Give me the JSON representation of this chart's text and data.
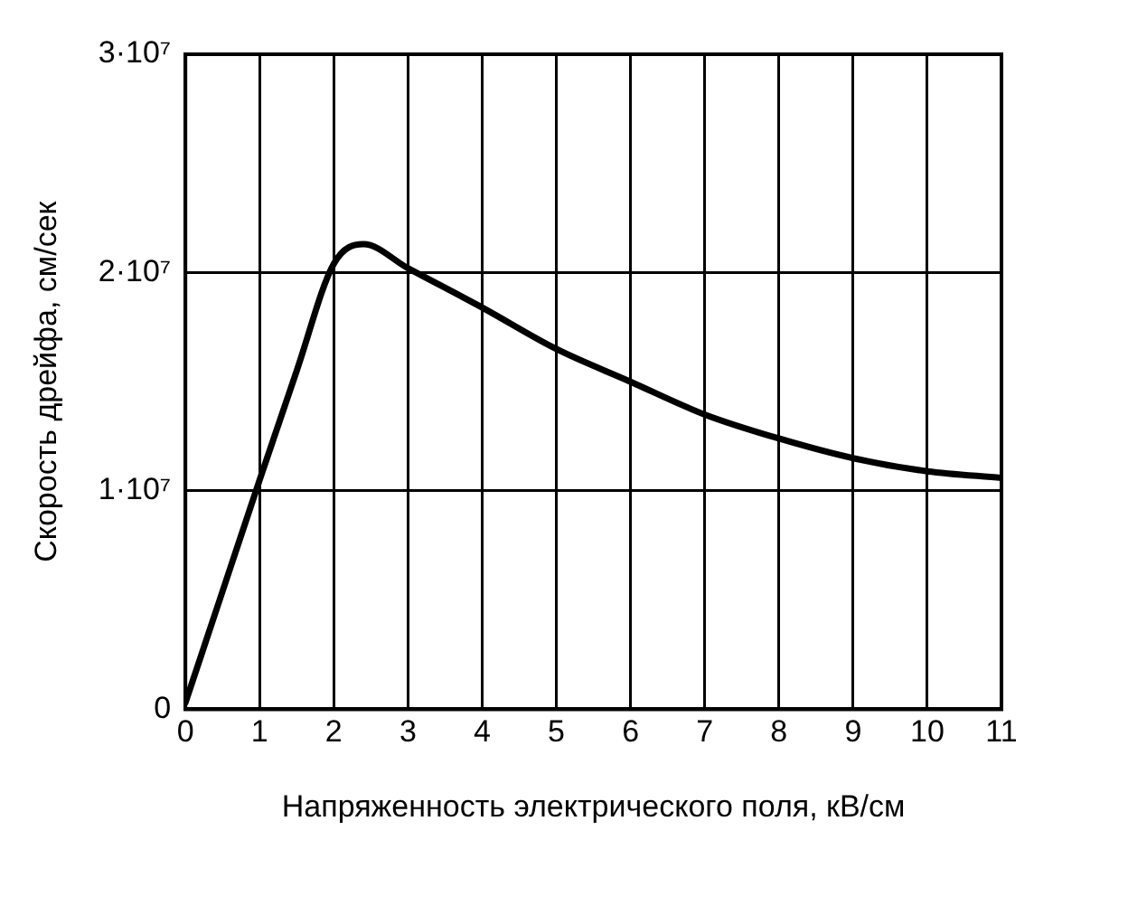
{
  "chart_data": {
    "type": "line",
    "xlabel": "Напряженность электрического поля, кВ/см",
    "ylabel": "Скорость дрейфа, см/сек",
    "x": [
      0,
      0.5,
      1,
      1.5,
      2,
      2.4,
      3,
      4,
      5,
      6,
      7,
      8,
      9,
      10,
      11
    ],
    "series": [
      {
        "color": "#000000",
        "values": [
          300000,
          5400000,
          10500000,
          15500000,
          20400000,
          21300000,
          20200000,
          18400000,
          16500000,
          15000000,
          13500000,
          12400000,
          11500000,
          10900000,
          10600000
        ]
      }
    ],
    "xlim": [
      0,
      11
    ],
    "xticks": [
      0,
      1,
      2,
      3,
      4,
      5,
      6,
      7,
      8,
      9,
      10,
      11
    ],
    "ylim": [
      0,
      30000000
    ],
    "yticks": [
      0,
      {
        "value": 10000000,
        "label": "1·10⁷"
      },
      {
        "value": 20000000,
        "label": "2·10⁷"
      },
      {
        "value": 30000000,
        "label": "3·10⁷"
      }
    ],
    "grid": true,
    "legend": false,
    "marker": "none",
    "line_style": "solid"
  }
}
